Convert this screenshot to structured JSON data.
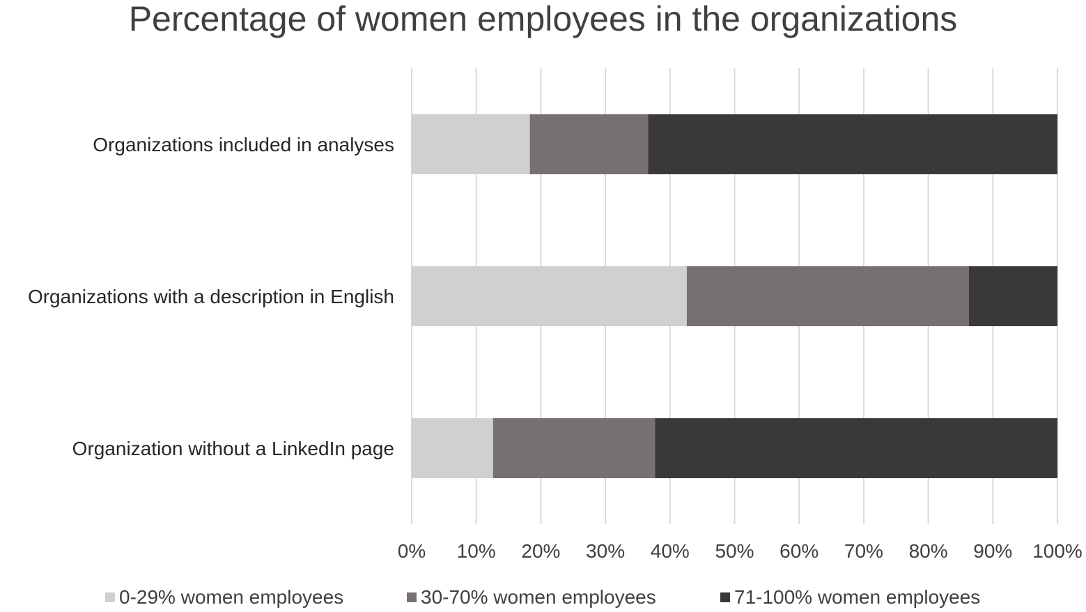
{
  "chart_data": {
    "type": "bar",
    "orientation": "horizontal",
    "stacked": "percent",
    "title": "Percentage of women employees in the organizations",
    "categories": [
      "Organizations included in analyses",
      "Organizations with a description in English",
      "Organization without a LinkedIn page"
    ],
    "series": [
      {
        "name": "0-29% women employees",
        "color": "#d0d0d0",
        "values": [
          18.3,
          42.6,
          12.6
        ]
      },
      {
        "name": "30-70% women employees",
        "color": "#767070",
        "values": [
          18.3,
          43.7,
          25.1
        ]
      },
      {
        "name": "71-100% women employees",
        "color": "#3a3937",
        "values": [
          63.4,
          13.7,
          62.3
        ]
      }
    ],
    "xlim": [
      0,
      100
    ],
    "xticks": [
      "0%",
      "10%",
      "20%",
      "30%",
      "40%",
      "50%",
      "60%",
      "70%",
      "80%",
      "90%",
      "100%"
    ],
    "grid": "vertical",
    "gridColor": "#d9d9d9",
    "legend": "bottom"
  }
}
